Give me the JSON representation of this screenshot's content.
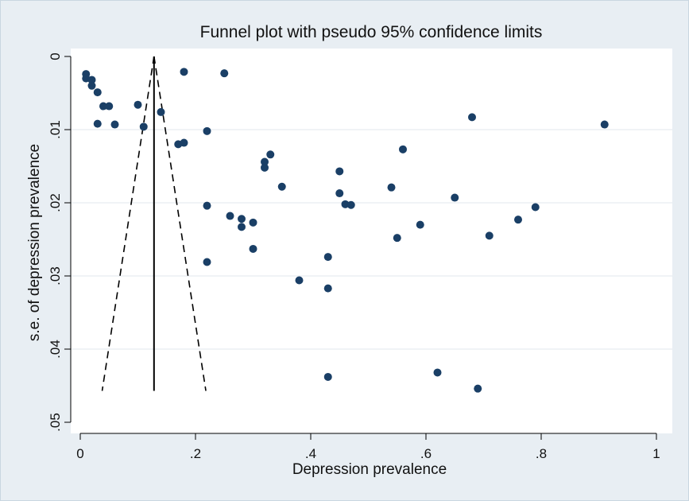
{
  "chart_data": {
    "type": "scatter",
    "title": "Funnel plot with pseudo 95% confidence limits",
    "xlabel": "Depression prevalence",
    "ylabel": "s.e. of depression prevalence",
    "xlim": [
      0,
      1
    ],
    "ylim": [
      0,
      0.05
    ],
    "y_reversed": true,
    "x_ticks": [
      0,
      0.2,
      0.4,
      0.6,
      0.8,
      1
    ],
    "x_tick_labels": [
      "0",
      ".2",
      ".4",
      ".6",
      ".8",
      "1"
    ],
    "y_ticks": [
      0,
      0.01,
      0.02,
      0.03,
      0.04,
      0.05
    ],
    "y_tick_labels": [
      "0",
      ".01",
      ".02",
      ".03",
      ".04",
      ".05"
    ],
    "grid": "horizontal",
    "colors": {
      "background": "#e8eef3",
      "plot_area": "#ffffff",
      "grid": "#e6ecf1",
      "points": "#1a3f66",
      "lines": "#000000"
    },
    "pooled_estimate": 0.128,
    "funnel_limits": {
      "apex": [
        0.128,
        0
      ],
      "left_base": [
        0.038,
        0.0457
      ],
      "right_base": [
        0.218,
        0.0457
      ]
    },
    "points": [
      {
        "x": 0.01,
        "y": 0.0024
      },
      {
        "x": 0.01,
        "y": 0.003
      },
      {
        "x": 0.02,
        "y": 0.0032
      },
      {
        "x": 0.02,
        "y": 0.004
      },
      {
        "x": 0.03,
        "y": 0.0049
      },
      {
        "x": 0.04,
        "y": 0.0068
      },
      {
        "x": 0.05,
        "y": 0.0068
      },
      {
        "x": 0.03,
        "y": 0.0092
      },
      {
        "x": 0.06,
        "y": 0.0093
      },
      {
        "x": 0.1,
        "y": 0.0066
      },
      {
        "x": 0.11,
        "y": 0.0096
      },
      {
        "x": 0.14,
        "y": 0.0076
      },
      {
        "x": 0.17,
        "y": 0.012
      },
      {
        "x": 0.18,
        "y": 0.0118
      },
      {
        "x": 0.18,
        "y": 0.0021
      },
      {
        "x": 0.22,
        "y": 0.0102
      },
      {
        "x": 0.22,
        "y": 0.0204
      },
      {
        "x": 0.22,
        "y": 0.0281
      },
      {
        "x": 0.25,
        "y": 0.0023
      },
      {
        "x": 0.26,
        "y": 0.0218
      },
      {
        "x": 0.28,
        "y": 0.0222
      },
      {
        "x": 0.28,
        "y": 0.0233
      },
      {
        "x": 0.3,
        "y": 0.0227
      },
      {
        "x": 0.3,
        "y": 0.0263
      },
      {
        "x": 0.32,
        "y": 0.0144
      },
      {
        "x": 0.32,
        "y": 0.0152
      },
      {
        "x": 0.33,
        "y": 0.0134
      },
      {
        "x": 0.35,
        "y": 0.0178
      },
      {
        "x": 0.38,
        "y": 0.0306
      },
      {
        "x": 0.43,
        "y": 0.0274
      },
      {
        "x": 0.43,
        "y": 0.0317
      },
      {
        "x": 0.43,
        "y": 0.0438
      },
      {
        "x": 0.45,
        "y": 0.0157
      },
      {
        "x": 0.45,
        "y": 0.0187
      },
      {
        "x": 0.46,
        "y": 0.0202
      },
      {
        "x": 0.47,
        "y": 0.0203
      },
      {
        "x": 0.54,
        "y": 0.0179
      },
      {
        "x": 0.55,
        "y": 0.0248
      },
      {
        "x": 0.56,
        "y": 0.0127
      },
      {
        "x": 0.59,
        "y": 0.023
      },
      {
        "x": 0.62,
        "y": 0.0432
      },
      {
        "x": 0.65,
        "y": 0.0193
      },
      {
        "x": 0.68,
        "y": 0.0083
      },
      {
        "x": 0.69,
        "y": 0.0454
      },
      {
        "x": 0.71,
        "y": 0.0245
      },
      {
        "x": 0.76,
        "y": 0.0223
      },
      {
        "x": 0.79,
        "y": 0.0206
      },
      {
        "x": 0.91,
        "y": 0.0093
      }
    ]
  }
}
